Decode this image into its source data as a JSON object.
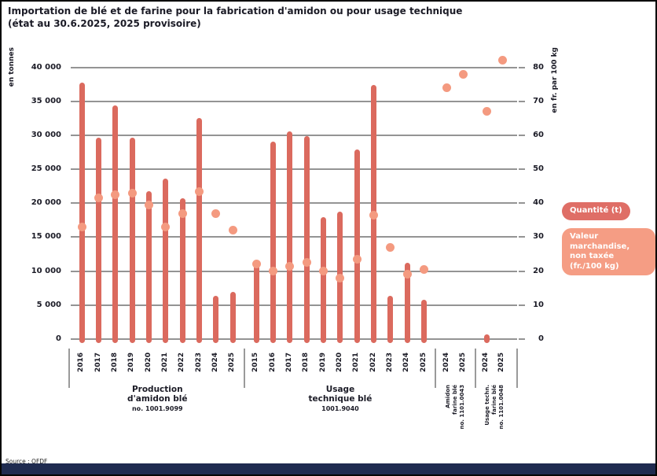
{
  "title": {
    "line1": "Importation de blé et de farine pour la fabrication d'amidon ou pour usage technique",
    "line2": "(état au 30.6.2025, 2025 provisoire)"
  },
  "legend": {
    "quantity_label": "Quantité (t)",
    "value_label_line1": "Valeur marchandise,",
    "value_label_line2": "non taxée (fr./100 kg)"
  },
  "footer": {
    "source": "Source : OFDF"
  },
  "colors": {
    "bar": "#db6a5e",
    "dot": "#f49a80",
    "legend_quantity": "#df6e66",
    "legend_value": "#f59d84",
    "grid": "#949494",
    "text": "#1b1b26",
    "footer_bar": "#1f2b50"
  },
  "chart_data": {
    "type": "bar",
    "dual_axis": true,
    "grid": true,
    "left_axis": {
      "title": "en tonnes",
      "min": 0,
      "max": 40000,
      "tick_step": 5000,
      "tick_labels": [
        "0",
        "5 000",
        "10 000",
        "15 000",
        "20 000",
        "25 000",
        "30 000",
        "35 000",
        "40 000"
      ]
    },
    "right_axis": {
      "title": "en fr. par 100 kg",
      "min": 0,
      "max": 80,
      "tick_step": 10,
      "tick_labels": [
        "0",
        "10",
        "20",
        "30",
        "40",
        "50",
        "60",
        "70",
        "80"
      ]
    },
    "series": [
      {
        "name": "Quantité (t)",
        "type": "bar",
        "axis": "left"
      },
      {
        "name": "Valeur marchandise, non taxée (fr./100 kg)",
        "type": "point",
        "axis": "right"
      }
    ],
    "groups": [
      {
        "label_lines": [
          "Production",
          "d'amidon blé"
        ],
        "tariff": "no. 1001.9099",
        "vertical_label": false,
        "years": [
          "2016",
          "2017",
          "2018",
          "2019",
          "2020",
          "2021",
          "2022",
          "2023",
          "2024",
          "2025"
        ],
        "quantity_t": [
          37700,
          29600,
          34400,
          29600,
          21800,
          23600,
          20700,
          32500,
          6400,
          6900
        ],
        "value_fr_per_100kg": [
          33,
          41.5,
          42.5,
          43,
          39.5,
          33,
          37,
          43.5,
          37,
          32
        ]
      },
      {
        "label_lines": [
          "Usage",
          "technique blé"
        ],
        "tariff": "1001.9040",
        "vertical_label": false,
        "years": [
          "2015",
          "2016",
          "2017",
          "2018",
          "2019",
          "2020",
          "2021",
          "2022",
          "2023",
          "2024",
          "2025"
        ],
        "quantity_t": [
          10900,
          29100,
          30600,
          29900,
          17900,
          18700,
          27900,
          37400,
          6400,
          11200,
          5800
        ],
        "value_fr_per_100kg": [
          22,
          20,
          21.5,
          22.5,
          20,
          18,
          23.5,
          36.5,
          27,
          19,
          20.5
        ]
      },
      {
        "label_lines": [
          "Amidon",
          "farine blé",
          "no. 1101.0043"
        ],
        "tariff": "",
        "vertical_label": true,
        "years": [
          "2024",
          "2025"
        ],
        "quantity_t": [
          null,
          null
        ],
        "value_fr_per_100kg": [
          74,
          78
        ]
      },
      {
        "label_lines": [
          "Usage techn.",
          "farine blé",
          "no. 1101.0048"
        ],
        "tariff": "",
        "vertical_label": true,
        "years": [
          "2024",
          "2025"
        ],
        "quantity_t": [
          700,
          null
        ],
        "value_fr_per_100kg": [
          67,
          82
        ]
      }
    ]
  }
}
